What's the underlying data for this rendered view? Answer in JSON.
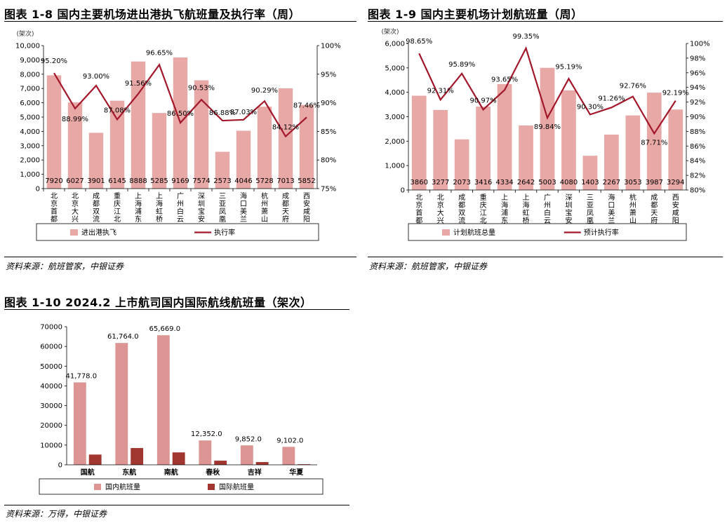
{
  "figures": [
    {
      "title": "图表 1-8 国内主要机场进出港执飞航班量及执行率（周）",
      "source": "资料来源：航班管家，中银证券"
    },
    {
      "title": "图表 1-9 国内主要机场计划航班量（周）",
      "source": "资料来源：航班管家，中银证券"
    },
    {
      "title": "图表 1-10 2024.2 上市航司国内国际航线航班量（架次）",
      "source": "资料来源：万得，中银证券"
    }
  ],
  "colors": {
    "bar": "#e8a8a6",
    "line": "#a3172a",
    "bar2_light": "#dc9592",
    "bar2_dark": "#a13530"
  },
  "chart_data": [
    {
      "type": "bar",
      "unit_label": "(架次)",
      "categories": [
        "北京首都",
        "北京大兴",
        "成都双流",
        "重庆江北",
        "上海浦东",
        "上海虹桥",
        "广州白云",
        "深圳宝安",
        "三亚凤凰",
        "海口美兰",
        "杭州萧山",
        "成都天府",
        "西安咸阳"
      ],
      "series": [
        {
          "name": "进出港执飞",
          "type": "bar",
          "values": [
            7920,
            6027,
            3901,
            6145,
            8888,
            5285,
            9169,
            7574,
            2573,
            4046,
            5728,
            7013,
            5852
          ],
          "labels": [
            "7920",
            "6027",
            "3901",
            "6145",
            "8888",
            "5285",
            "9169",
            "7574",
            "2573",
            "4046",
            "5728",
            "7013",
            "5852"
          ]
        },
        {
          "name": "执行率",
          "type": "line",
          "axis": "right",
          "values": [
            95.2,
            88.99,
            93.0,
            87.08,
            91.56,
            96.65,
            86.5,
            90.53,
            86.88,
            87.03,
            90.29,
            84.12,
            87.46
          ],
          "labels": [
            "95.20%",
            "88.99%",
            "93.00%",
            "87.08%",
            "91.56%",
            "96.65%",
            "86.50%",
            "90.53%",
            "86.88%",
            "87.03%",
            "90.29%",
            "84.12%",
            "87.46%"
          ]
        }
      ],
      "ylim": [
        0,
        10000
      ],
      "yticks": [
        "0",
        "1,000",
        "2,000",
        "3,000",
        "4,000",
        "5,000",
        "6,000",
        "7,000",
        "8,000",
        "9,000",
        "10,000"
      ],
      "y2lim": [
        75,
        100
      ],
      "y2ticks": [
        "75%",
        "80%",
        "85%",
        "90%",
        "95%",
        "100%"
      ],
      "legend": "bottom"
    },
    {
      "type": "bar",
      "unit_label": "(架次)",
      "categories": [
        "北京首都",
        "北京大兴",
        "成都双流",
        "重庆江北",
        "上海浦东",
        "上海虹桥",
        "广州白云",
        "深圳宝安",
        "三亚凤凰",
        "海口美兰",
        "杭州萧山",
        "成都天府",
        "西安咸阳"
      ],
      "series": [
        {
          "name": "计划航班总量",
          "type": "bar",
          "values": [
            3860,
            3277,
            2073,
            3416,
            4334,
            2642,
            5003,
            4080,
            1403,
            2267,
            3053,
            3987,
            3294
          ],
          "labels": [
            "3860",
            "3277",
            "2073",
            "3416",
            "4334",
            "2642",
            "5003",
            "4080",
            "1403",
            "2267",
            "3053",
            "3987",
            "3294"
          ]
        },
        {
          "name": "预计执行率",
          "type": "line",
          "axis": "right",
          "values": [
            98.65,
            92.31,
            95.89,
            90.97,
            93.65,
            99.35,
            89.84,
            95.19,
            90.3,
            91.26,
            92.76,
            87.71,
            92.19
          ],
          "labels": [
            "98.65%",
            "92.31%",
            "95.89%",
            "90.97%",
            "93.65%",
            "99.35%",
            "89.84%",
            "95.19%",
            "90.30%",
            "91.26%",
            "92.76%",
            "87.71%",
            "92.19%"
          ]
        }
      ],
      "ylim": [
        0,
        6000
      ],
      "yticks": [
        "0",
        "1,000",
        "2,000",
        "3,000",
        "4,000",
        "5,000",
        "6,000"
      ],
      "y2lim": [
        80,
        100
      ],
      "y2ticks": [
        "80%",
        "82%",
        "84%",
        "86%",
        "88%",
        "90%",
        "92%",
        "94%",
        "96%",
        "98%",
        "100%"
      ],
      "legend": "bottom"
    },
    {
      "type": "bar",
      "categories": [
        "国航",
        "东航",
        "南航",
        "春秋",
        "吉祥",
        "华夏"
      ],
      "series": [
        {
          "name": "国内航班量",
          "values": [
            41778,
            61764,
            65669,
            12352,
            9852,
            9102
          ],
          "labels": [
            "41,778.0",
            "61,764.0",
            "65,669.0",
            "12,352.0",
            "9,852.0",
            "9,102.0"
          ]
        },
        {
          "name": "国际航班量",
          "values": [
            5200,
            8500,
            6300,
            2100,
            1400,
            300
          ]
        }
      ],
      "ylim": [
        0,
        70000
      ],
      "yticks": [
        "0",
        "10000",
        "20000",
        "30000",
        "40000",
        "50000",
        "60000",
        "70000"
      ],
      "legend": "bottom"
    }
  ]
}
